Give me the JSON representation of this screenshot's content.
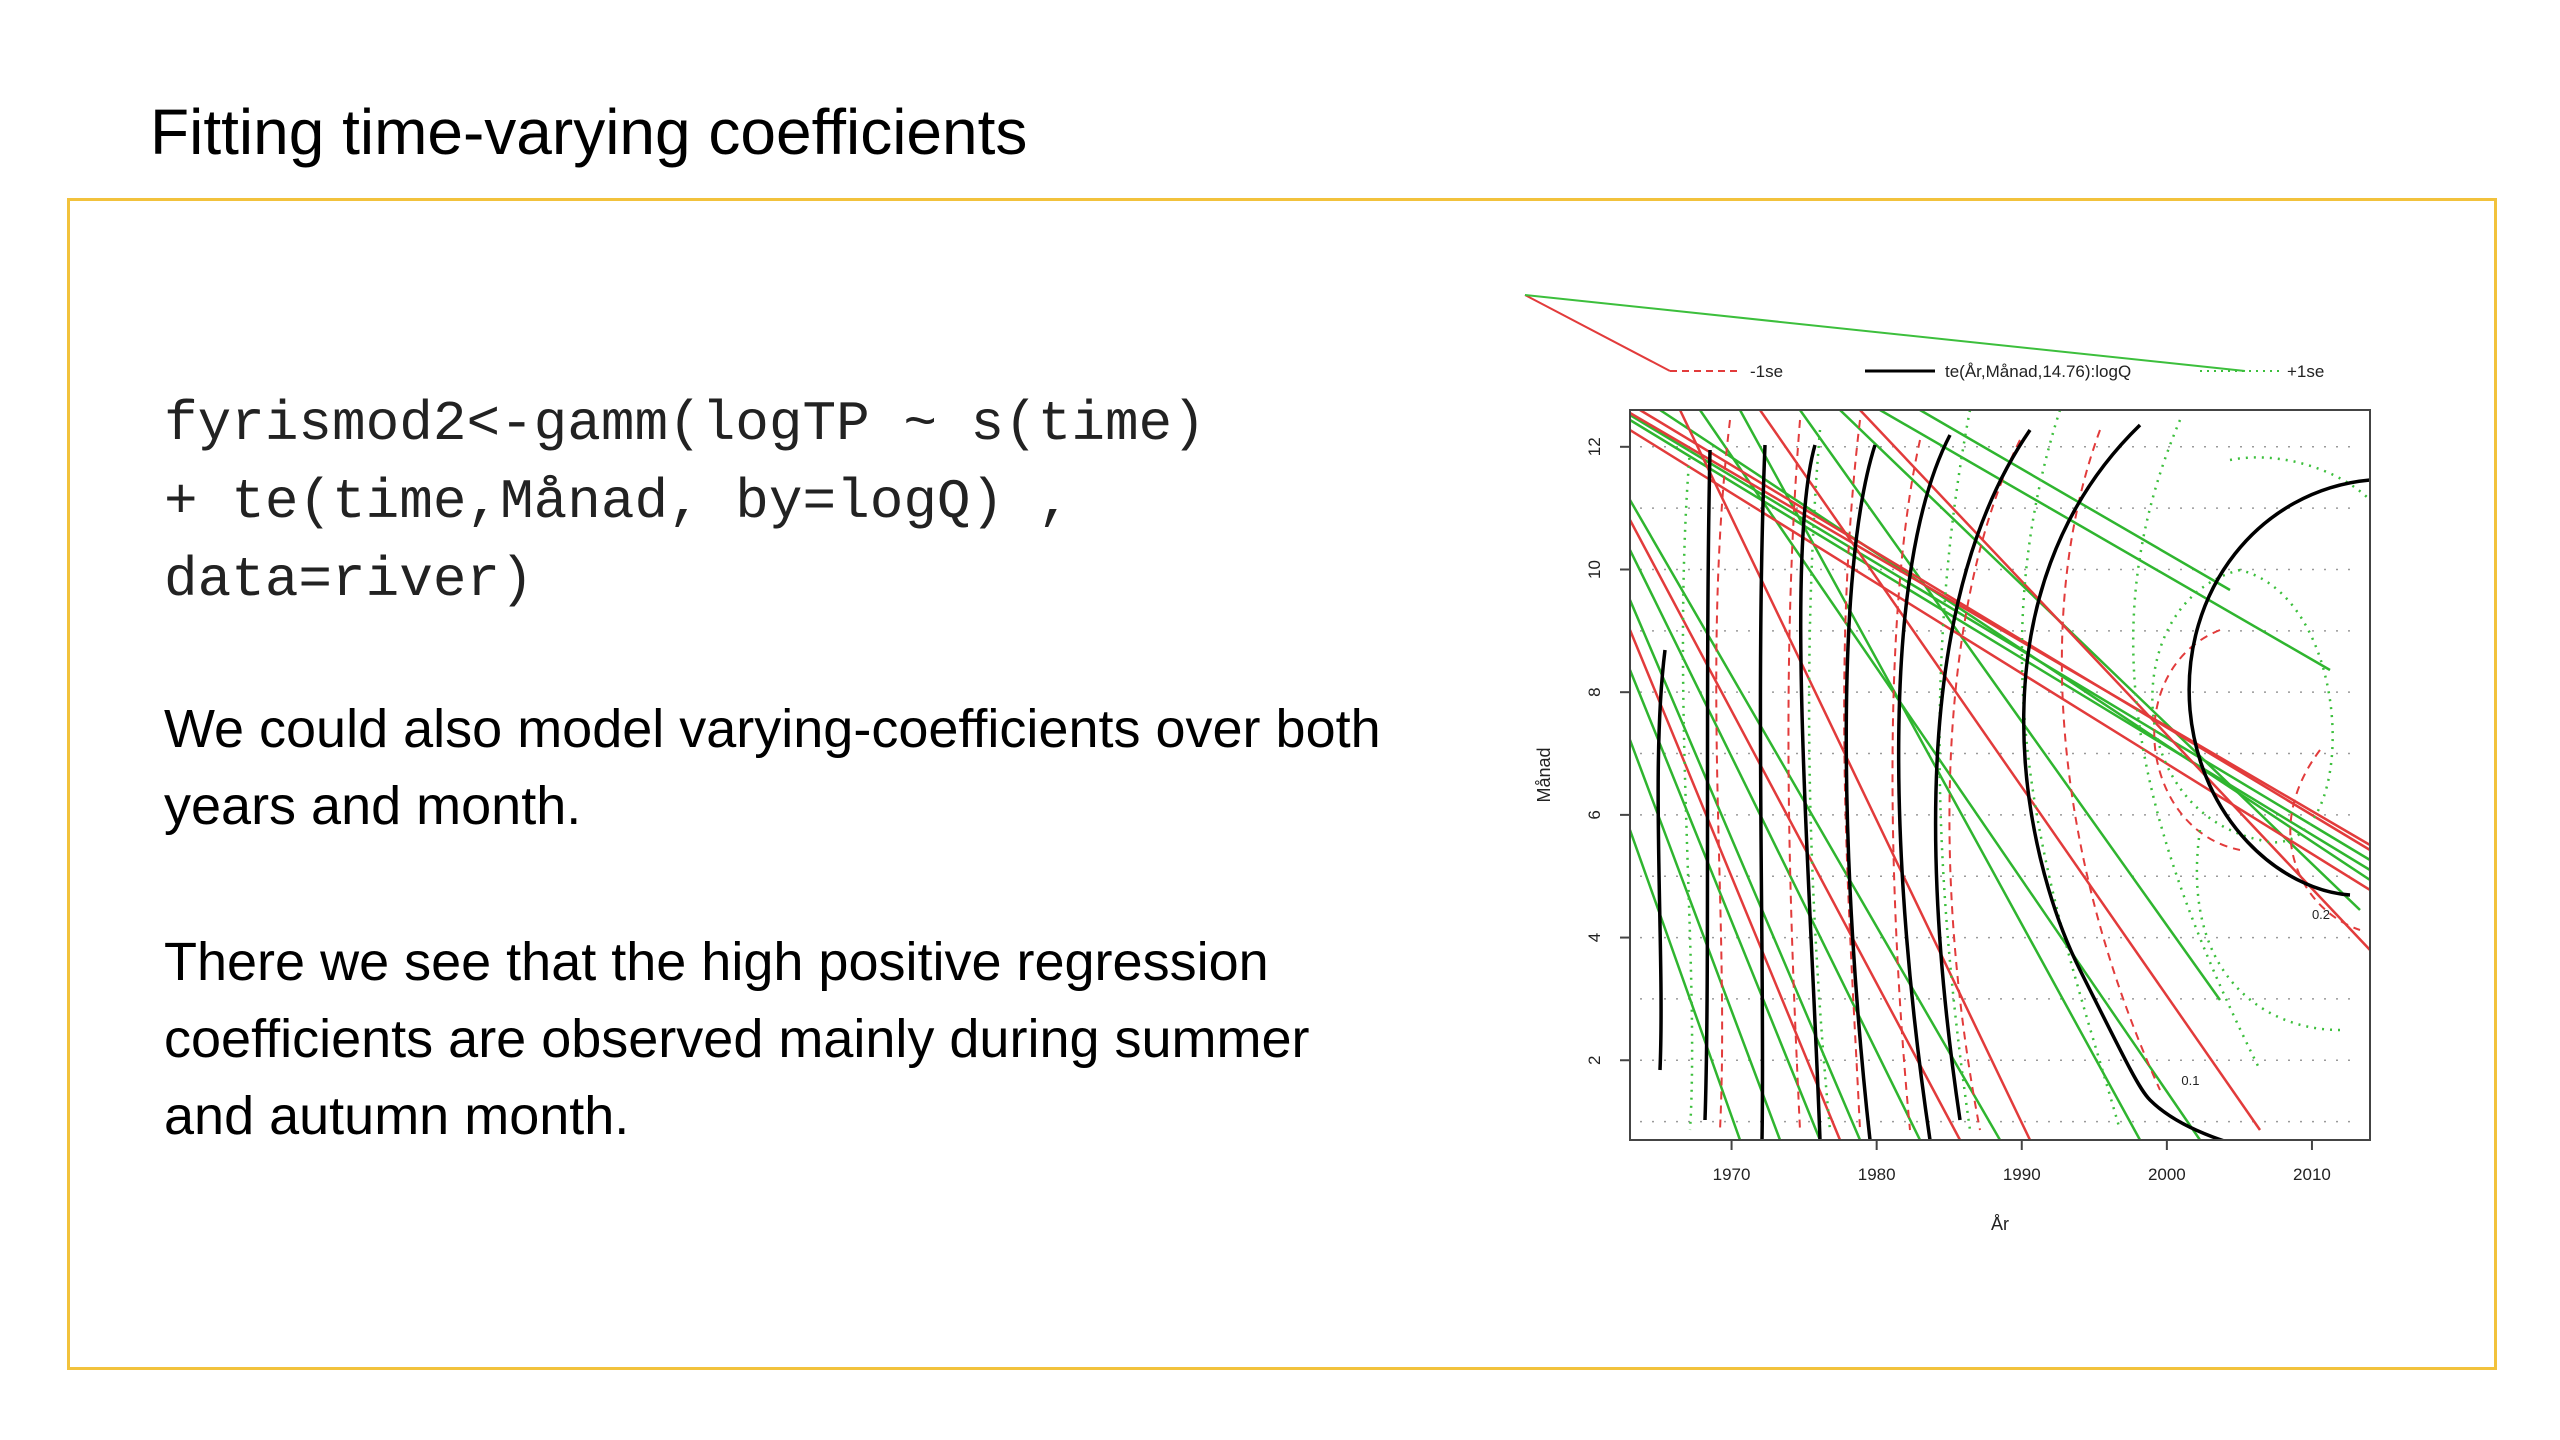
{
  "slide": {
    "title": "Fitting time-varying coefficients",
    "code_lines": [
      "fyrismod2<-gamm(logTP ~ s(time)",
      "+ te(time,Månad, by=logQ) ,",
      "data=river)"
    ],
    "paragraphs": [
      "We could also model varying-coefficients over both years and month.",
      "There we see that the high positive regression coefficients are observed mainly during summer and autumn month."
    ],
    "accent_color": "#f2c23c"
  },
  "chart_data": {
    "type": "contour",
    "xlabel": "År",
    "ylabel": "Månad",
    "xlim": [
      1963,
      2014
    ],
    "ylim": [
      0.7,
      12.6
    ],
    "xticks": [
      1970,
      1980,
      1990,
      2000,
      2010
    ],
    "yticks": [
      2,
      4,
      6,
      8,
      10,
      12
    ],
    "legend": {
      "placement": "top",
      "entries": [
        {
          "label": "-1se",
          "color": "#e23b3b",
          "style": "dashed"
        },
        {
          "label": "te(År,Månad,14.76):logQ",
          "color": "#000000",
          "style": "solid"
        },
        {
          "label": "+1se",
          "color": "#3cbf3c",
          "style": "dotted"
        }
      ]
    },
    "contour_labels": [
      {
        "text": "0.2",
        "x": 2010,
        "y": 4.3
      },
      {
        "text": "0.1",
        "x": 2001,
        "y": 1.6
      }
    ],
    "colors": {
      "fit": "#000000",
      "minus_se": "#e23b3b",
      "plus_se": "#3cbf3c",
      "grid": "#9a9a9a"
    }
  }
}
